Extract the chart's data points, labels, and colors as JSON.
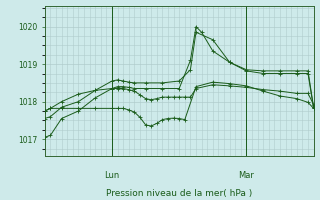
{
  "bg_color": "#ceeaea",
  "line_color": "#1a5c1a",
  "grid_color": "#b0cccc",
  "spine_color": "#336633",
  "title": "Pression niveau de la mer( hPa )",
  "xlabel_lun": "Lun",
  "xlabel_mar": "Mar",
  "ylim": [
    1016.55,
    1020.55
  ],
  "yticks": [
    1017,
    1018,
    1019,
    1020
  ],
  "xlim": [
    0,
    48
  ],
  "lun_x": 12,
  "mar_x": 36,
  "series": [
    {
      "x": [
        0,
        1,
        3,
        6,
        9,
        12,
        13,
        14,
        15,
        16,
        18,
        21,
        24,
        26,
        27,
        28,
        30,
        33,
        36,
        39,
        42,
        45,
        47,
        48
      ],
      "y": [
        1017.05,
        1017.1,
        1017.55,
        1017.75,
        1018.1,
        1018.35,
        1018.4,
        1018.4,
        1018.38,
        1018.35,
        1018.35,
        1018.35,
        1018.35,
        1019.1,
        1020.0,
        1019.85,
        1019.35,
        1019.05,
        1018.85,
        1018.82,
        1018.82,
        1018.82,
        1018.82,
        1017.85
      ]
    },
    {
      "x": [
        0,
        1,
        3,
        6,
        9,
        12,
        13,
        14,
        15,
        16,
        18,
        21,
        24,
        26,
        27,
        30,
        33,
        36,
        39,
        42,
        45,
        47,
        48
      ],
      "y": [
        1017.55,
        1017.6,
        1017.85,
        1018.0,
        1018.3,
        1018.55,
        1018.58,
        1018.55,
        1018.52,
        1018.5,
        1018.5,
        1018.5,
        1018.55,
        1018.85,
        1019.85,
        1019.65,
        1019.05,
        1018.82,
        1018.75,
        1018.75,
        1018.75,
        1018.75,
        1017.82
      ]
    },
    {
      "x": [
        0,
        1,
        3,
        6,
        9,
        12,
        13,
        14,
        15,
        16,
        17,
        18,
        19,
        20,
        21,
        22,
        23,
        24,
        25,
        26,
        27,
        30,
        33,
        36,
        39,
        42,
        45,
        47,
        48
      ],
      "y": [
        1017.75,
        1017.82,
        1018.0,
        1018.2,
        1018.3,
        1018.35,
        1018.35,
        1018.35,
        1018.32,
        1018.28,
        1018.18,
        1018.08,
        1018.05,
        1018.08,
        1018.12,
        1018.12,
        1018.12,
        1018.12,
        1018.12,
        1018.12,
        1018.35,
        1018.45,
        1018.42,
        1018.38,
        1018.32,
        1018.28,
        1018.22,
        1018.22,
        1017.92
      ]
    },
    {
      "x": [
        0,
        1,
        3,
        6,
        9,
        12,
        13,
        14,
        15,
        16,
        17,
        18,
        19,
        20,
        21,
        22,
        23,
        24,
        25,
        27,
        30,
        33,
        36,
        39,
        42,
        45,
        47,
        48
      ],
      "y": [
        1017.75,
        1017.82,
        1017.82,
        1017.82,
        1017.82,
        1017.82,
        1017.82,
        1017.82,
        1017.78,
        1017.72,
        1017.58,
        1017.38,
        1017.35,
        1017.42,
        1017.52,
        1017.55,
        1017.56,
        1017.55,
        1017.52,
        1018.4,
        1018.52,
        1018.48,
        1018.42,
        1018.28,
        1018.15,
        1018.08,
        1017.98,
        1017.82
      ]
    }
  ],
  "figsize": [
    3.2,
    2.0
  ],
  "dpi": 100
}
